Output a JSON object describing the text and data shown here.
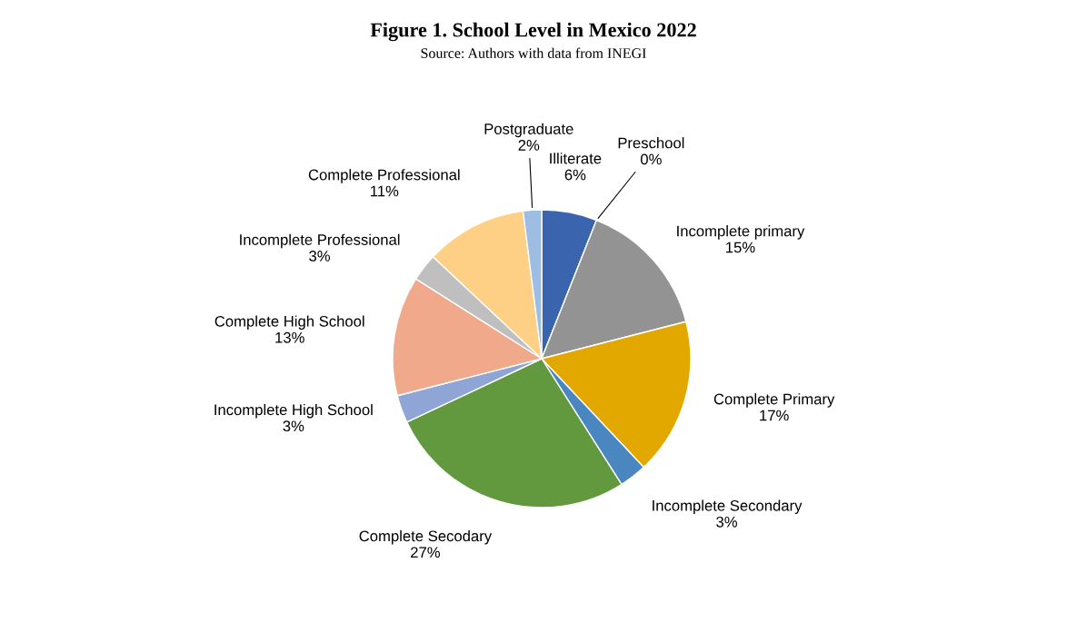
{
  "chart_data": {
    "type": "pie",
    "title": "Figure 1. School Level in Mexico 2022",
    "subtitle": "Source: Authors with data from INEGI",
    "categories": [
      "Illiterate",
      "Preschool",
      "Incomplete primary",
      "Complete Primary",
      "Incomplete Secondary",
      "Complete Secodary",
      "Incomplete High School",
      "Complete High School",
      "Incomplete Professional",
      "Complete Professional",
      "Postgraduate"
    ],
    "values": [
      6,
      0,
      15,
      17,
      3,
      27,
      3,
      13,
      3,
      11,
      2
    ],
    "value_labels": [
      "6%",
      "0%",
      "15%",
      "17%",
      "3%",
      "27%",
      "3%",
      "13%",
      "3%",
      "11%",
      "2%"
    ],
    "colors": [
      "#3a64ad",
      "#ed7d31",
      "#939393",
      "#e2a800",
      "#4a86bf",
      "#62993e",
      "#8ea5d6",
      "#f0a98b",
      "#bfbfbf",
      "#fdd086",
      "#9dbde3"
    ],
    "legend": false
  }
}
